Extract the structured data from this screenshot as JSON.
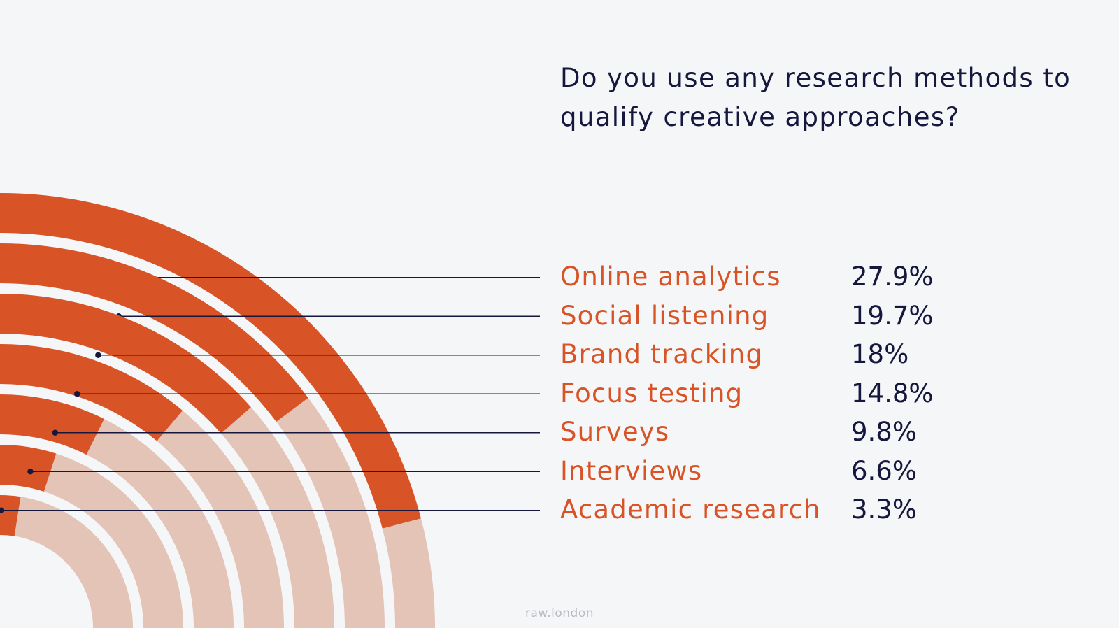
{
  "title": "Do you use any research methods to qualify creative approaches?",
  "footer": "raw.london",
  "colors": {
    "background": "#f5f6f8",
    "arc_filled": "#d85426",
    "arc_track": "#e4c4b7",
    "label": "#d85426",
    "value_text": "#15173d",
    "leader_line": "#15173d",
    "footer_text": "#b7bac4"
  },
  "chart_data": {
    "type": "radial-bar",
    "title": "Do you use any research methods to qualify creative approaches?",
    "categories": [
      "Online analytics",
      "Social listening",
      "Brand tracking",
      "Focus testing",
      "Surveys",
      "Interviews",
      "Academic research"
    ],
    "values": [
      27.9,
      19.7,
      18,
      14.8,
      9.8,
      6.6,
      3.3
    ],
    "value_labels": [
      "27.9%",
      "19.7%",
      "18%",
      "14.8%",
      "9.8%",
      "6.6%",
      "3.3%"
    ],
    "unit": "%",
    "max": 33.3,
    "legend": "right"
  }
}
